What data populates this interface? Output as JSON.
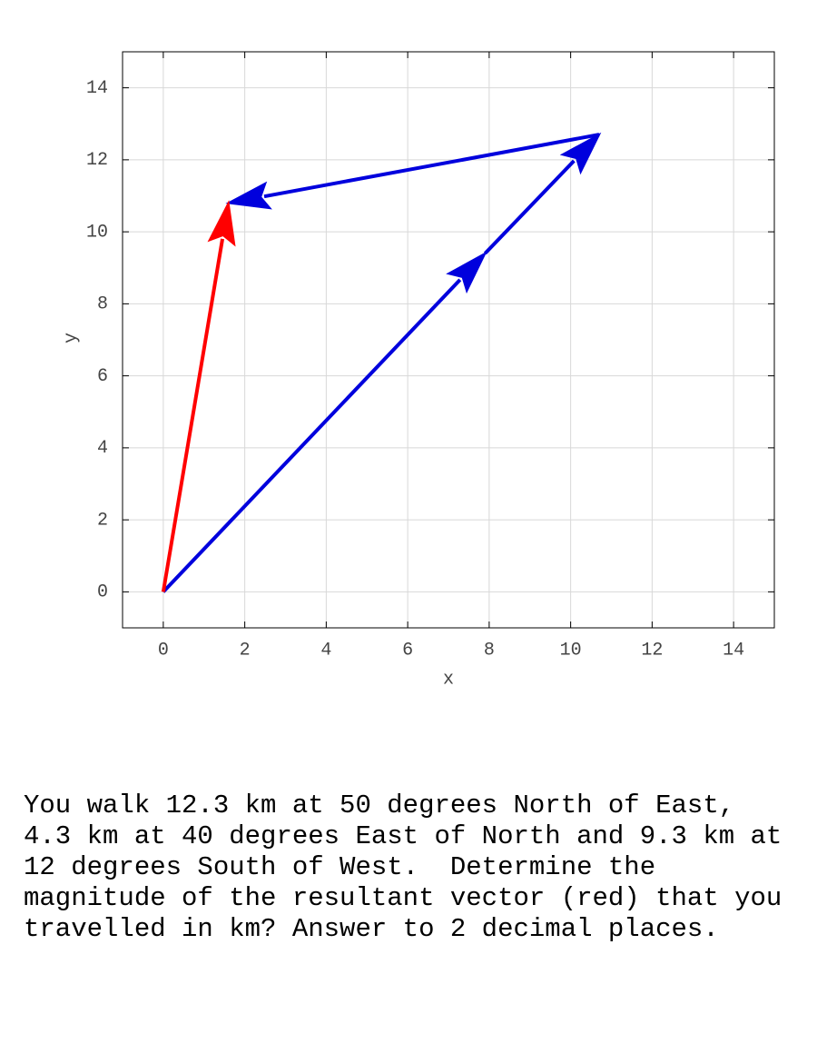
{
  "chart_data": {
    "type": "vector",
    "xlabel": "x",
    "ylabel": "y",
    "xlim": [
      -1,
      15
    ],
    "ylim": [
      -1,
      15
    ],
    "xticks": [
      0,
      2,
      4,
      6,
      8,
      10,
      12,
      14
    ],
    "yticks": [
      0,
      2,
      4,
      6,
      8,
      10,
      12,
      14
    ],
    "grid": true,
    "vectors": [
      {
        "color": "#0000dd",
        "x": [
          0,
          7.9
        ],
        "y": [
          0,
          9.4
        ]
      },
      {
        "color": "#0000dd",
        "x": [
          7.9,
          10.7
        ],
        "y": [
          9.4,
          12.7
        ]
      },
      {
        "color": "#0000dd",
        "x": [
          10.7,
          1.6
        ],
        "y": [
          12.7,
          10.8
        ]
      },
      {
        "color": "#ff0000",
        "x": [
          0,
          1.6
        ],
        "y": [
          0,
          10.8
        ]
      }
    ]
  },
  "question": {
    "lines": [
      "You walk 12.3 km at 50 degrees North of East,",
      "4.3 km at 40 degrees East of North and 9.3 km at",
      "12 degrees South of West.  Determine the",
      "magnitude of the resultant vector (red) that you",
      "travelled in km? Answer to 2 decimal places."
    ]
  }
}
